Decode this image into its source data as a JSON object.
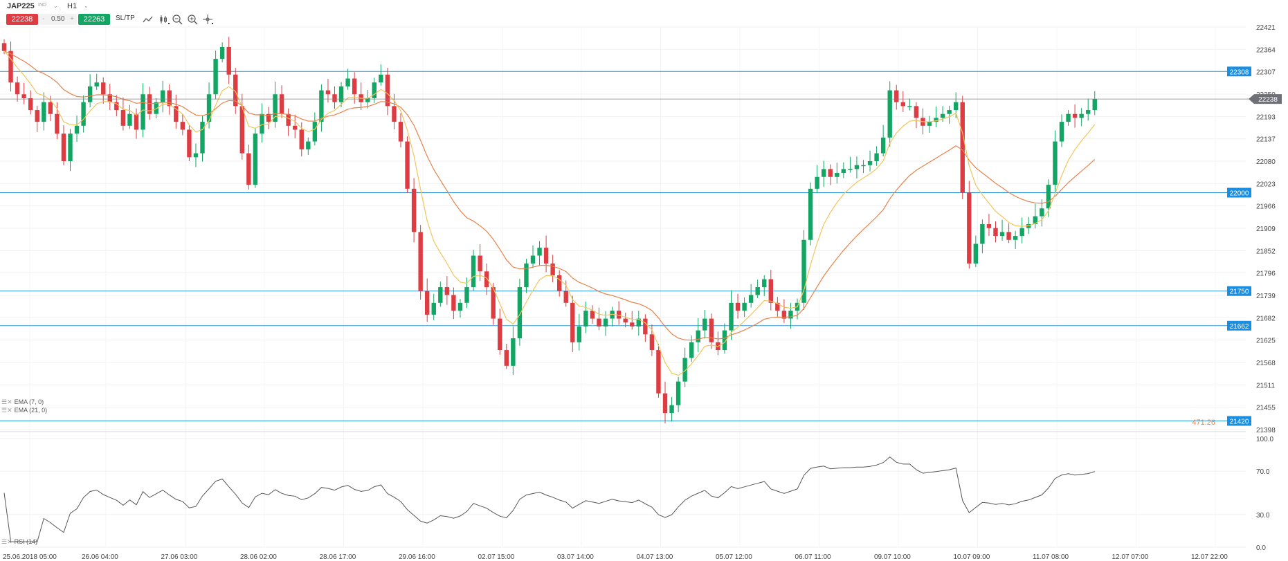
{
  "toolbar": {
    "symbol": "JAP225",
    "exchange": "IND",
    "timeframe": "H1",
    "sell_price": "22238",
    "spread_minus": "-",
    "spread": "0.50",
    "spread_plus": "+",
    "buy_price": "22263",
    "sltp_label": "SL/TP",
    "icons": [
      "line-chart-icon",
      "candles-icon",
      "zoom-out-icon",
      "zoom-in-icon",
      "crosshair-icon"
    ]
  },
  "indicators": {
    "ema7": "EMA (7, 0)",
    "ema21": "EMA (21, 0)",
    "rsi": "RSI (14)"
  },
  "colors": {
    "up": "#12a564",
    "down": "#dd3c43",
    "ema_fast": "#f2c45c",
    "ema_slow": "#e8824a",
    "hline": "#2a97d8",
    "tag": "#1a8ee0",
    "current_tag": "#6d7077",
    "rsi": "#555555"
  },
  "partial_label": "471.26",
  "chart_data": {
    "type": "candlestick",
    "instrument": "JAP225",
    "timeframe": "H1",
    "current_price": "22238",
    "price_ticks": [
      "22421",
      "22364",
      "22307",
      "22250",
      "22193",
      "22137",
      "22080",
      "22023",
      "21966",
      "21909",
      "21852",
      "21796",
      "21739",
      "21682",
      "21625",
      "21568",
      "21511",
      "21455",
      "21398"
    ],
    "ylim": [
      21398,
      22421
    ],
    "x_ticks": [
      "25.06.2018 05:00",
      "26.06 04:00",
      "27.06 03:00",
      "28.06 02:00",
      "28.06 17:00",
      "29.06 16:00",
      "02.07 15:00",
      "03.07 14:00",
      "04.07 13:00",
      "05.07 12:00",
      "06.07 11:00",
      "09.07 10:00",
      "10.07 09:00",
      "11.07 08:00",
      "12.07 07:00",
      "12.07 22:00"
    ],
    "horizontal_lines": [
      "22308",
      "22000",
      "21750",
      "21662",
      "21420"
    ],
    "rsi_ticks": [
      "100.0",
      "70.0",
      "30.0",
      "0.0"
    ],
    "closes": [
      22360,
      22280,
      22250,
      22240,
      22210,
      22180,
      22230,
      22200,
      22150,
      22080,
      22150,
      22170,
      22230,
      22270,
      22280,
      22250,
      22230,
      22210,
      22170,
      22200,
      22160,
      22250,
      22200,
      22230,
      22260,
      22220,
      22180,
      22160,
      22090,
      22100,
      22180,
      22250,
      22340,
      22370,
      22300,
      22220,
      22100,
      22020,
      22150,
      22200,
      22180,
      22250,
      22200,
      22170,
      22160,
      22110,
      22130,
      22180,
      22260,
      22250,
      22230,
      22270,
      22290,
      22250,
      22230,
      22240,
      22280,
      22300,
      22220,
      22180,
      22130,
      22010,
      21900,
      21750,
      21690,
      21720,
      21760,
      21740,
      21700,
      21720,
      21760,
      21840,
      21800,
      21760,
      21680,
      21600,
      21560,
      21630,
      21760,
      21820,
      21840,
      21860,
      21820,
      21790,
      21750,
      21720,
      21620,
      21660,
      21700,
      21680,
      21660,
      21680,
      21700,
      21680,
      21670,
      21660,
      21680,
      21640,
      21600,
      21490,
      21440,
      21460,
      21520,
      21580,
      21620,
      21650,
      21680,
      21620,
      21600,
      21650,
      21720,
      21700,
      21720,
      21740,
      21760,
      21780,
      21720,
      21700,
      21680,
      21700,
      21720,
      21880,
      22010,
      22040,
      22060,
      22040,
      22050,
      22060,
      22060,
      22070,
      22070,
      22080,
      22100,
      22140,
      22260,
      22230,
      22220,
      22220,
      22190,
      22170,
      22180,
      22190,
      22200,
      22210,
      22230,
      22000,
      21820,
      21870,
      21920,
      21910,
      21890,
      21900,
      21880,
      21890,
      21910,
      21920,
      21940,
      21960,
      22020,
      22130,
      22180,
      22200,
      22190,
      22200,
      22210,
      22238
    ],
    "ema7_note": "EMA (7, 0)",
    "ema21_note": "EMA (21, 0)"
  }
}
